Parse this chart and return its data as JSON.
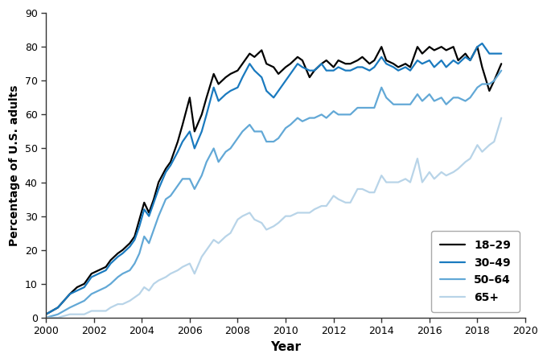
{
  "xlabel": "Year",
  "ylabel": "Percentage of U.S. adults",
  "xlim": [
    2000,
    2020
  ],
  "ylim": [
    0,
    90
  ],
  "yticks": [
    0,
    10,
    20,
    30,
    40,
    50,
    60,
    70,
    80,
    90
  ],
  "xticks": [
    2000,
    2002,
    2004,
    2006,
    2008,
    2010,
    2012,
    2014,
    2016,
    2018,
    2020
  ],
  "series": {
    "18-29": {
      "color": "#000000",
      "linewidth": 1.6,
      "x": [
        2000.0,
        2000.5,
        2001.0,
        2001.3,
        2001.6,
        2001.9,
        2002.2,
        2002.5,
        2002.7,
        2003.0,
        2003.2,
        2003.5,
        2003.7,
        2003.9,
        2004.1,
        2004.3,
        2004.5,
        2004.7,
        2005.0,
        2005.2,
        2005.5,
        2005.7,
        2006.0,
        2006.2,
        2006.5,
        2006.7,
        2007.0,
        2007.2,
        2007.5,
        2007.7,
        2008.0,
        2008.2,
        2008.5,
        2008.7,
        2009.0,
        2009.2,
        2009.5,
        2009.7,
        2010.0,
        2010.2,
        2010.5,
        2010.7,
        2011.0,
        2011.2,
        2011.5,
        2011.7,
        2012.0,
        2012.2,
        2012.5,
        2012.7,
        2013.0,
        2013.2,
        2013.5,
        2013.7,
        2014.0,
        2014.2,
        2014.5,
        2014.7,
        2015.0,
        2015.2,
        2015.5,
        2015.7,
        2016.0,
        2016.2,
        2016.5,
        2016.7,
        2017.0,
        2017.2,
        2017.5,
        2017.7,
        2018.0,
        2018.2,
        2018.5,
        2018.7,
        2019.0
      ],
      "y": [
        1,
        3,
        7,
        9,
        10,
        13,
        14,
        15,
        17,
        19,
        20,
        22,
        24,
        29,
        34,
        31,
        35,
        40,
        44,
        46,
        52,
        57,
        65,
        55,
        60,
        65,
        72,
        69,
        71,
        72,
        73,
        75,
        78,
        77,
        79,
        75,
        74,
        72,
        74,
        75,
        77,
        76,
        71,
        73,
        75,
        76,
        74,
        76,
        75,
        75,
        76,
        77,
        75,
        76,
        80,
        76,
        75,
        74,
        75,
        74,
        80,
        78,
        80,
        79,
        80,
        79,
        80,
        76,
        78,
        76,
        80,
        74,
        67,
        70,
        75
      ]
    },
    "30-49": {
      "color": "#1a7abf",
      "linewidth": 1.6,
      "x": [
        2000.0,
        2000.5,
        2001.0,
        2001.3,
        2001.6,
        2001.9,
        2002.2,
        2002.5,
        2002.7,
        2003.0,
        2003.2,
        2003.5,
        2003.7,
        2003.9,
        2004.1,
        2004.3,
        2004.5,
        2004.7,
        2005.0,
        2005.2,
        2005.5,
        2005.7,
        2006.0,
        2006.2,
        2006.5,
        2006.7,
        2007.0,
        2007.2,
        2007.5,
        2007.7,
        2008.0,
        2008.2,
        2008.5,
        2008.7,
        2009.0,
        2009.2,
        2009.5,
        2009.7,
        2010.0,
        2010.2,
        2010.5,
        2010.7,
        2011.0,
        2011.2,
        2011.5,
        2011.7,
        2012.0,
        2012.2,
        2012.5,
        2012.7,
        2013.0,
        2013.2,
        2013.5,
        2013.7,
        2014.0,
        2014.2,
        2014.5,
        2014.7,
        2015.0,
        2015.2,
        2015.5,
        2015.7,
        2016.0,
        2016.2,
        2016.5,
        2016.7,
        2017.0,
        2017.2,
        2017.5,
        2017.7,
        2018.0,
        2018.2,
        2018.5,
        2018.7,
        2019.0
      ],
      "y": [
        1,
        3,
        7,
        8,
        9,
        12,
        13,
        14,
        16,
        18,
        19,
        21,
        23,
        27,
        32,
        30,
        34,
        38,
        43,
        45,
        49,
        52,
        55,
        50,
        55,
        60,
        68,
        64,
        66,
        67,
        68,
        71,
        75,
        73,
        71,
        67,
        65,
        67,
        70,
        72,
        75,
        74,
        73,
        73,
        75,
        73,
        73,
        74,
        73,
        73,
        74,
        74,
        73,
        74,
        77,
        75,
        74,
        73,
        74,
        73,
        76,
        75,
        76,
        74,
        76,
        74,
        76,
        75,
        77,
        76,
        80,
        81,
        78,
        78,
        78
      ]
    },
    "50-64": {
      "color": "#62a8d6",
      "linewidth": 1.6,
      "x": [
        2000.0,
        2000.5,
        2001.0,
        2001.3,
        2001.6,
        2001.9,
        2002.2,
        2002.5,
        2002.7,
        2003.0,
        2003.2,
        2003.5,
        2003.7,
        2003.9,
        2004.1,
        2004.3,
        2004.5,
        2004.7,
        2005.0,
        2005.2,
        2005.5,
        2005.7,
        2006.0,
        2006.2,
        2006.5,
        2006.7,
        2007.0,
        2007.2,
        2007.5,
        2007.7,
        2008.0,
        2008.2,
        2008.5,
        2008.7,
        2009.0,
        2009.2,
        2009.5,
        2009.7,
        2010.0,
        2010.2,
        2010.5,
        2010.7,
        2011.0,
        2011.2,
        2011.5,
        2011.7,
        2012.0,
        2012.2,
        2012.5,
        2012.7,
        2013.0,
        2013.2,
        2013.5,
        2013.7,
        2014.0,
        2014.2,
        2014.5,
        2014.7,
        2015.0,
        2015.2,
        2015.5,
        2015.7,
        2016.0,
        2016.2,
        2016.5,
        2016.7,
        2017.0,
        2017.2,
        2017.5,
        2017.7,
        2018.0,
        2018.2,
        2018.5,
        2018.7,
        2019.0
      ],
      "y": [
        0,
        1,
        3,
        4,
        5,
        7,
        8,
        9,
        10,
        12,
        13,
        14,
        16,
        19,
        24,
        22,
        26,
        30,
        35,
        36,
        39,
        41,
        41,
        38,
        42,
        46,
        50,
        46,
        49,
        50,
        53,
        55,
        57,
        55,
        55,
        52,
        52,
        53,
        56,
        57,
        59,
        58,
        59,
        59,
        60,
        59,
        61,
        60,
        60,
        60,
        62,
        62,
        62,
        62,
        68,
        65,
        63,
        63,
        63,
        63,
        66,
        64,
        66,
        64,
        65,
        63,
        65,
        65,
        64,
        65,
        68,
        69,
        69,
        70,
        73
      ]
    },
    "65+": {
      "color": "#b8d4e8",
      "linewidth": 1.6,
      "x": [
        2000.0,
        2000.5,
        2001.0,
        2001.3,
        2001.6,
        2001.9,
        2002.2,
        2002.5,
        2002.7,
        2003.0,
        2003.2,
        2003.5,
        2003.7,
        2003.9,
        2004.1,
        2004.3,
        2004.5,
        2004.7,
        2005.0,
        2005.2,
        2005.5,
        2005.7,
        2006.0,
        2006.2,
        2006.5,
        2006.7,
        2007.0,
        2007.2,
        2007.5,
        2007.7,
        2008.0,
        2008.2,
        2008.5,
        2008.7,
        2009.0,
        2009.2,
        2009.5,
        2009.7,
        2010.0,
        2010.2,
        2010.5,
        2010.7,
        2011.0,
        2011.2,
        2011.5,
        2011.7,
        2012.0,
        2012.2,
        2012.5,
        2012.7,
        2013.0,
        2013.2,
        2013.5,
        2013.7,
        2014.0,
        2014.2,
        2014.5,
        2014.7,
        2015.0,
        2015.2,
        2015.5,
        2015.7,
        2016.0,
        2016.2,
        2016.5,
        2016.7,
        2017.0,
        2017.2,
        2017.5,
        2017.7,
        2018.0,
        2018.2,
        2018.5,
        2018.7,
        2019.0
      ],
      "y": [
        0,
        0,
        1,
        1,
        1,
        2,
        2,
        2,
        3,
        4,
        4,
        5,
        6,
        7,
        9,
        8,
        10,
        11,
        12,
        13,
        14,
        15,
        16,
        13,
        18,
        20,
        23,
        22,
        24,
        25,
        29,
        30,
        31,
        29,
        28,
        26,
        27,
        28,
        30,
        30,
        31,
        31,
        31,
        32,
        33,
        33,
        36,
        35,
        34,
        34,
        38,
        38,
        37,
        37,
        42,
        40,
        40,
        40,
        41,
        40,
        47,
        40,
        43,
        41,
        43,
        42,
        43,
        44,
        46,
        47,
        51,
        49,
        51,
        52,
        59
      ]
    }
  },
  "legend_labels": [
    "18–29",
    "30–49",
    "50–64",
    "65+"
  ],
  "legend_loc": "lower right",
  "background_color": "#ffffff",
  "spine_color": "#333333"
}
